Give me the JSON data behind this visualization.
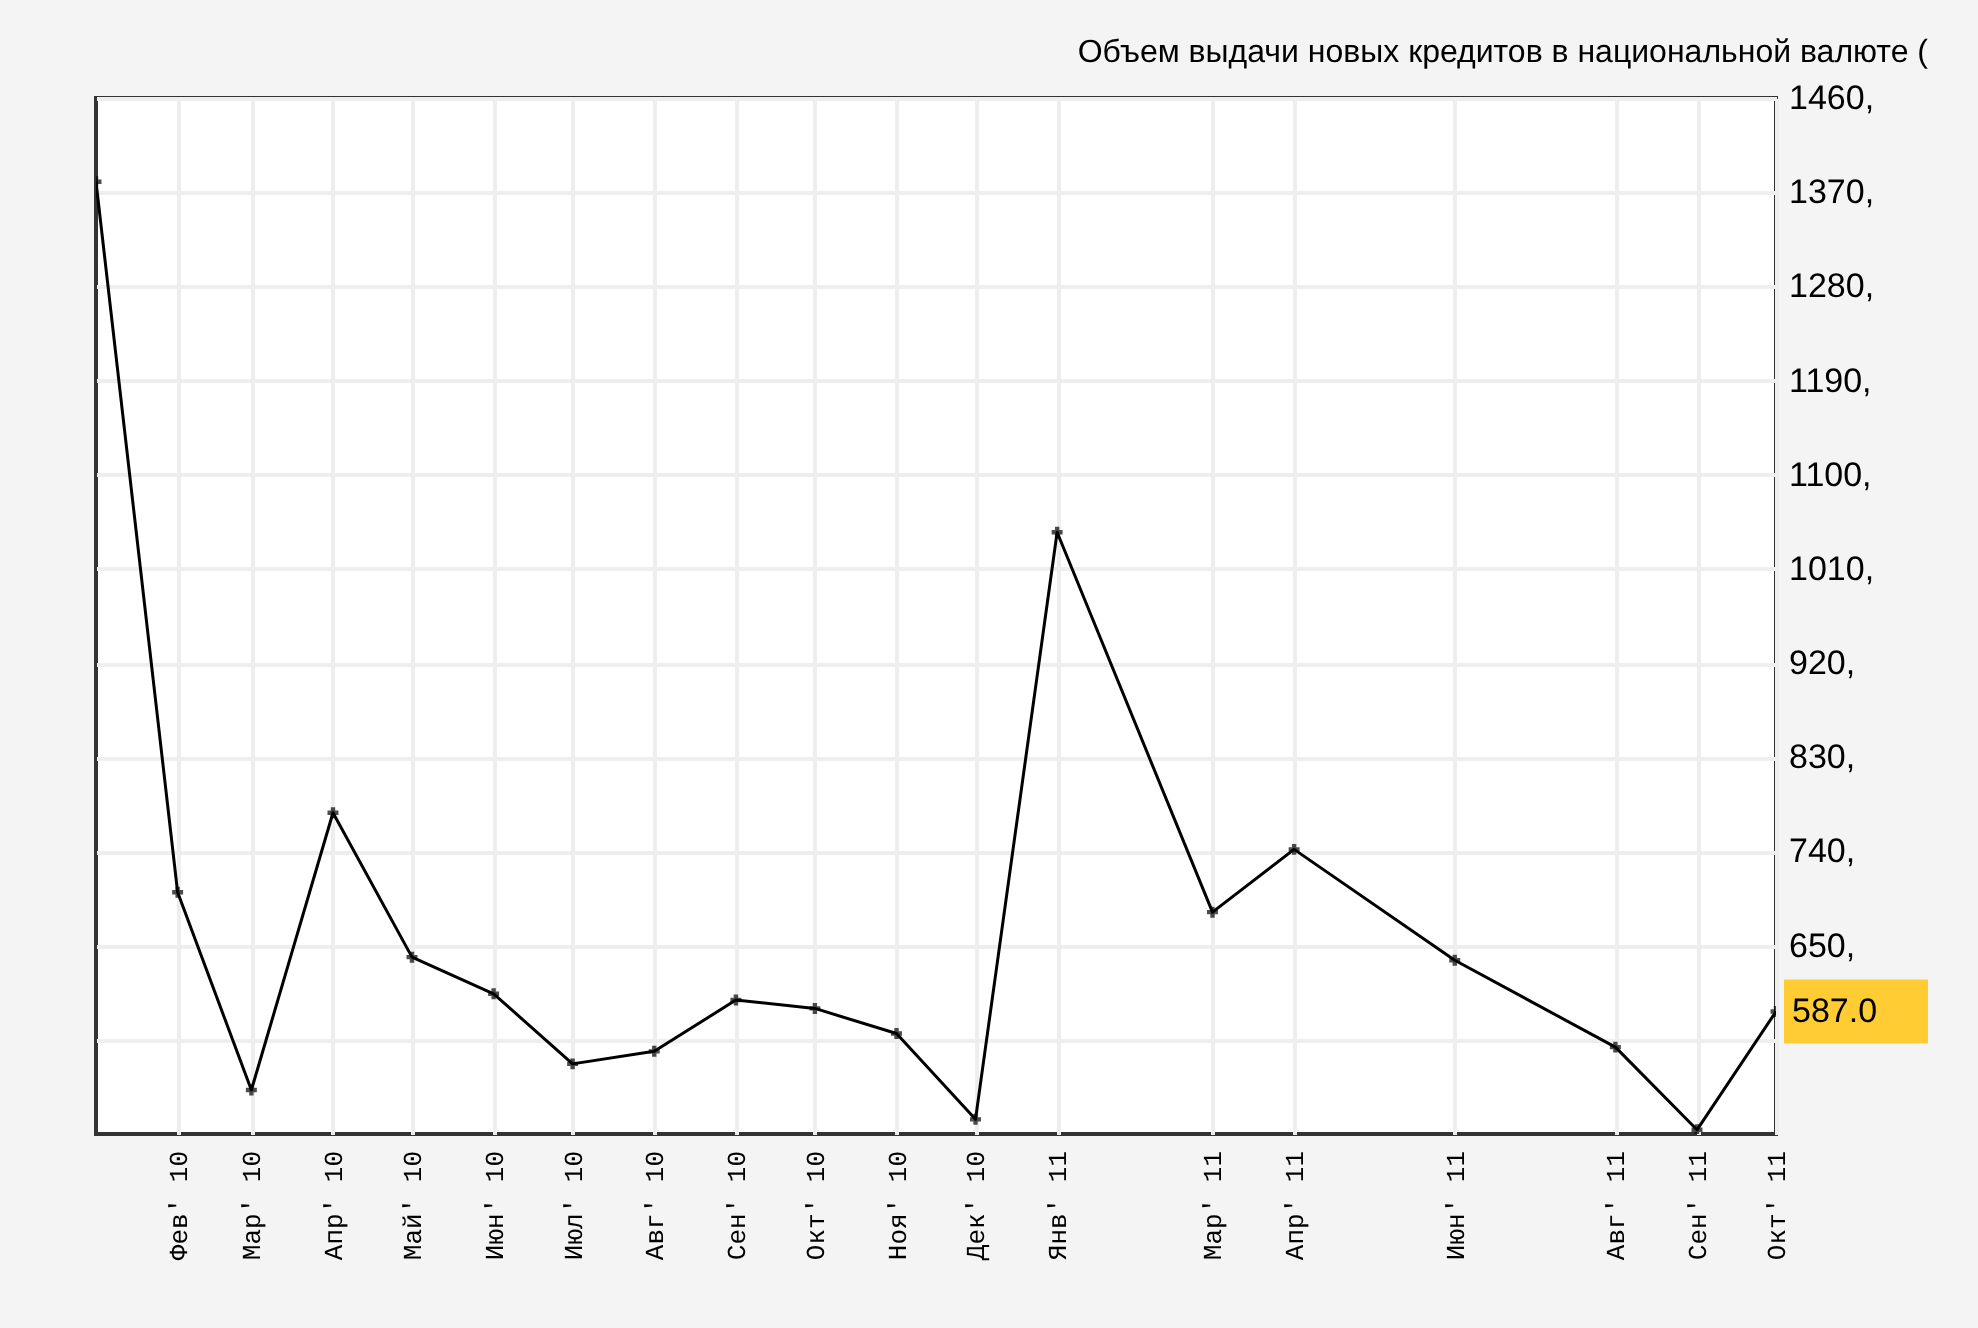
{
  "chart_data": {
    "type": "line",
    "title": "Объем выдачи новых кредитов в национальной валюте (",
    "x": [
      "2010-01",
      "2010-02",
      "2010-03",
      "2010-04",
      "2010-05",
      "2010-06",
      "2010-07",
      "2010-08",
      "2010-09",
      "2010-10",
      "2010-11",
      "2010-12",
      "2011-01",
      "2011-03",
      "2011-04",
      "2011-06",
      "2011-08",
      "2011-09",
      "2011-10"
    ],
    "series": [
      {
        "color": "#000000",
        "values": [
          1380,
          701,
          512,
          777,
          639,
          604,
          537,
          549,
          598,
          590,
          566,
          484,
          1045,
          682,
          742,
          636,
          553,
          474,
          587.0
        ]
      }
    ],
    "xlim": [
      "2010-01",
      "2011-10"
    ],
    "xticks": [
      {
        "value": "2010-02",
        "label": "Фев' 10"
      },
      {
        "value": "2010-03",
        "label": "Мар' 10"
      },
      {
        "value": "2010-04",
        "label": "Апр' 10"
      },
      {
        "value": "2010-05",
        "label": "Май' 10"
      },
      {
        "value": "2010-06",
        "label": "Июн' 10"
      },
      {
        "value": "2010-07",
        "label": "Июл' 10"
      },
      {
        "value": "2010-08",
        "label": "Авг' 10"
      },
      {
        "value": "2010-09",
        "label": "Сен' 10"
      },
      {
        "value": "2010-10",
        "label": "Окт' 10"
      },
      {
        "value": "2010-11",
        "label": "Ноя' 10"
      },
      {
        "value": "2010-12",
        "label": "Дек' 10"
      },
      {
        "value": "2011-01",
        "label": "Янв' 11"
      },
      {
        "value": "2011-03",
        "label": "Мар' 11"
      },
      {
        "value": "2011-04",
        "label": "Апр' 11"
      },
      {
        "value": "2011-06",
        "label": "Июн' 11"
      },
      {
        "value": "2011-08",
        "label": "Авг' 11"
      },
      {
        "value": "2011-09",
        "label": "Сен' 11"
      },
      {
        "value": "2011-10",
        "label": "Окт' 11"
      }
    ],
    "ylim": [
      470,
      1460
    ],
    "yticks": [
      {
        "value": 560,
        "label": null
      },
      {
        "value": 650,
        "label": "650,"
      },
      {
        "value": 740,
        "label": "740,"
      },
      {
        "value": 830,
        "label": "830,"
      },
      {
        "value": 920,
        "label": "920,"
      },
      {
        "value": 1010,
        "label": "1010,"
      },
      {
        "value": 1100,
        "label": "1100,"
      },
      {
        "value": 1190,
        "label": "1190,"
      },
      {
        "value": 1280,
        "label": "1280,"
      },
      {
        "value": 1370,
        "label": "1370,"
      },
      {
        "value": 1460,
        "label": "1460,"
      }
    ],
    "annotations": [
      {
        "text": "587.0",
        "x": "2011-10",
        "y": 587.0
      }
    ],
    "grid": true,
    "marker": "cross",
    "line_style": "solid"
  }
}
